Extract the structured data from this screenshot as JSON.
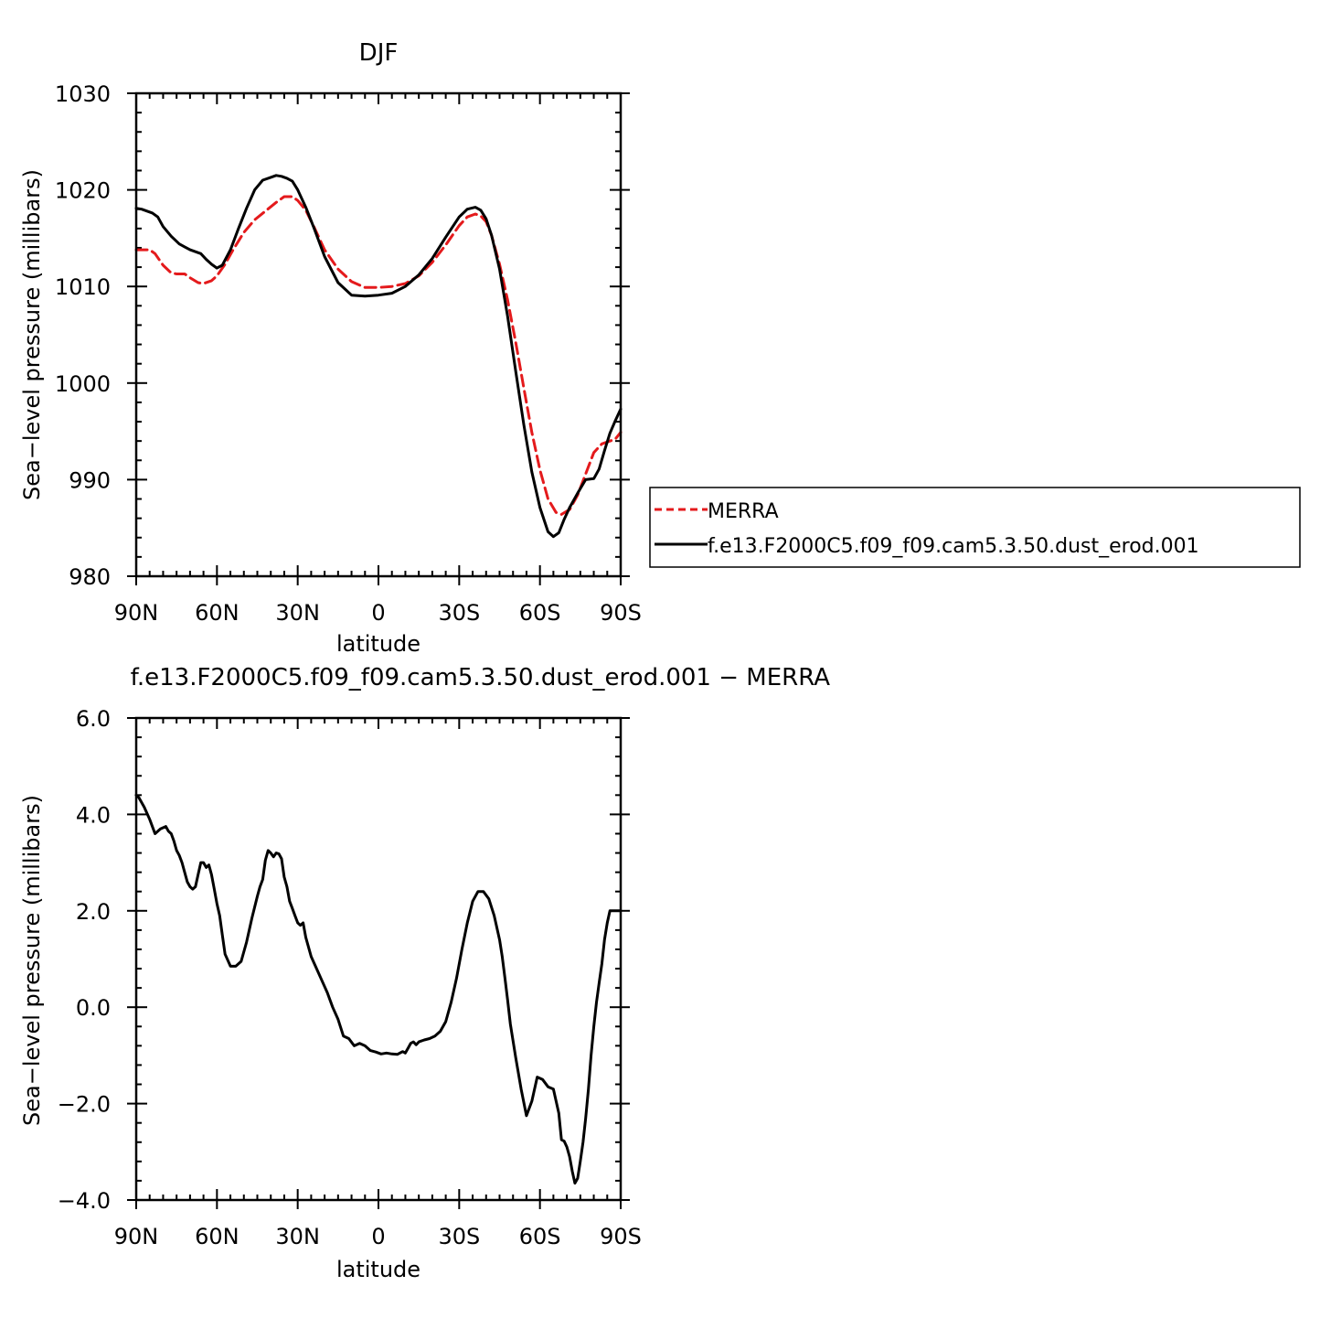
{
  "chart_data": [
    {
      "type": "line",
      "title": "DJF",
      "xlabel": "latitude",
      "ylabel": "Sea−level pressure (millibars)",
      "xlim": [
        90,
        -90
      ],
      "ylim": [
        980,
        1030
      ],
      "x_ticks": [
        {
          "value": 90,
          "label": "90N"
        },
        {
          "value": 60,
          "label": "60N"
        },
        {
          "value": 30,
          "label": "30N"
        },
        {
          "value": 0,
          "label": "0"
        },
        {
          "value": -30,
          "label": "30S"
        },
        {
          "value": -60,
          "label": "60S"
        },
        {
          "value": -90,
          "label": "90S"
        }
      ],
      "y_ticks": [
        {
          "value": 1030,
          "label": "1030"
        },
        {
          "value": 1020,
          "label": "1020"
        },
        {
          "value": 1010,
          "label": "1010"
        },
        {
          "value": 1000,
          "label": "1000"
        },
        {
          "value": 990,
          "label": "990"
        },
        {
          "value": 980,
          "label": "980"
        }
      ],
      "legend_position": "right",
      "series": [
        {
          "name": "MERRA",
          "color": "#e41a1c",
          "dash": "dashed",
          "x": [
            90,
            88,
            85,
            83,
            80,
            77,
            75,
            72,
            70,
            67,
            65,
            62,
            60,
            57,
            54,
            50,
            46,
            42,
            38,
            35,
            32,
            30,
            27,
            24,
            20,
            15,
            10,
            5,
            0,
            -5,
            -10,
            -15,
            -20,
            -25,
            -30,
            -33,
            -36,
            -38,
            -40,
            -42,
            -45,
            -48,
            -51,
            -54,
            -57,
            -60,
            -63,
            -66,
            -68,
            -71,
            -74,
            -77,
            -80,
            -83,
            -86,
            -88,
            -90
          ],
          "values": [
            1013.8,
            1013.8,
            1013.8,
            1013.4,
            1012.2,
            1011.4,
            1011.3,
            1011.3,
            1010.9,
            1010.4,
            1010.3,
            1010.6,
            1011.1,
            1012.3,
            1013.8,
            1015.6,
            1016.9,
            1017.8,
            1018.7,
            1019.3,
            1019.3,
            1018.9,
            1017.9,
            1016.2,
            1013.8,
            1011.8,
            1010.5,
            1009.9,
            1009.9,
            1010.0,
            1010.3,
            1011.1,
            1012.5,
            1014.3,
            1016.3,
            1017.2,
            1017.5,
            1017.3,
            1016.7,
            1015.3,
            1012.3,
            1008.6,
            1004.2,
            999.5,
            994.9,
            991.0,
            988.0,
            986.6,
            986.4,
            986.9,
            988.4,
            990.6,
            992.8,
            993.7,
            994.0,
            994.2,
            994.9
          ]
        },
        {
          "name": "f.e13.F2000C5.f09_f09.cam5.3.50.dust_erod.001",
          "color": "#000000",
          "dash": "solid",
          "x": [
            90,
            88,
            86,
            84,
            82,
            80,
            77,
            74,
            72,
            70,
            68,
            66,
            64,
            62,
            60,
            58,
            55,
            52,
            49,
            46,
            43,
            40,
            38,
            36,
            34,
            32,
            30,
            27,
            24,
            20,
            15,
            10,
            5,
            0,
            -5,
            -10,
            -15,
            -20,
            -25,
            -30,
            -33,
            -36,
            -38,
            -40,
            -42,
            -45,
            -48,
            -51,
            -54,
            -57,
            -60,
            -63,
            -65,
            -67,
            -69,
            -71,
            -74,
            -77,
            -80,
            -82,
            -84,
            -86,
            -88,
            -90
          ],
          "values": [
            1018.1,
            1018.0,
            1017.8,
            1017.6,
            1017.2,
            1016.2,
            1015.2,
            1014.4,
            1014.1,
            1013.8,
            1013.6,
            1013.4,
            1012.8,
            1012.3,
            1011.9,
            1012.2,
            1013.8,
            1016.0,
            1018.1,
            1020.0,
            1021.0,
            1021.3,
            1021.5,
            1021.4,
            1021.2,
            1020.9,
            1020.0,
            1018.2,
            1016.1,
            1013.1,
            1010.4,
            1009.1,
            1009.0,
            1009.1,
            1009.3,
            1010.0,
            1011.2,
            1012.9,
            1015.1,
            1017.2,
            1018.0,
            1018.2,
            1017.9,
            1017.0,
            1015.3,
            1011.8,
            1006.9,
            1001.2,
            995.7,
            990.8,
            987.1,
            984.6,
            984.1,
            984.5,
            985.9,
            987.1,
            988.6,
            990.0,
            990.1,
            991.1,
            993.0,
            994.8,
            996.1,
            997.3
          ]
        }
      ]
    },
    {
      "type": "line",
      "title": "f.e13.F2000C5.f09_f09.cam5.3.50.dust_erod.001 − MERRA",
      "xlabel": "latitude",
      "ylabel": "Sea−level pressure (millibars)",
      "xlim": [
        90,
        -90
      ],
      "ylim": [
        -4,
        6
      ],
      "x_ticks": [
        {
          "value": 90,
          "label": "90N"
        },
        {
          "value": 60,
          "label": "60N"
        },
        {
          "value": 30,
          "label": "30N"
        },
        {
          "value": 0,
          "label": "0"
        },
        {
          "value": -30,
          "label": "30S"
        },
        {
          "value": -60,
          "label": "60S"
        },
        {
          "value": -90,
          "label": "90S"
        }
      ],
      "y_ticks": [
        {
          "value": 6,
          "label": "6.0"
        },
        {
          "value": 4,
          "label": "4.0"
        },
        {
          "value": 2,
          "label": "2.0"
        },
        {
          "value": 0,
          "label": "0.0"
        },
        {
          "value": -2,
          "label": "−2.0"
        },
        {
          "value": -4,
          "label": "−4.0"
        }
      ],
      "series": [
        {
          "color": "#000000",
          "dash": "solid",
          "x": [
            90,
            89,
            87,
            85,
            83,
            81,
            79,
            78,
            77,
            76,
            75,
            74,
            73,
            71,
            70,
            69,
            68,
            67,
            66,
            65,
            64,
            63,
            62,
            61,
            60,
            59,
            58,
            57,
            55,
            53,
            51,
            49,
            47,
            45,
            44,
            43,
            42,
            41,
            40,
            39,
            38,
            37,
            36,
            35,
            34,
            33,
            32,
            31,
            30,
            29,
            28,
            27,
            25,
            23,
            21,
            19,
            17,
            15,
            13,
            11,
            9,
            7,
            5,
            3,
            1,
            -1,
            -3,
            -5,
            -7,
            -9,
            -10,
            -11,
            -12,
            -13,
            -14,
            -15,
            -17,
            -19,
            -21,
            -23,
            -25,
            -27,
            -29,
            -31,
            -33,
            -35,
            -37,
            -39,
            -41,
            -43,
            -45,
            -46,
            -47,
            -48,
            -49,
            -51,
            -53,
            -55,
            -57,
            -59,
            -61,
            -63,
            -65,
            -67,
            -68,
            -69,
            -70,
            -71,
            -72,
            -73,
            -74,
            -75,
            -76,
            -77,
            -78,
            -79,
            -80,
            -81,
            -82,
            -83,
            -84,
            -85,
            -86,
            -87,
            -88,
            -89,
            -90
          ],
          "values": [
            4.4,
            4.35,
            4.15,
            3.9,
            3.6,
            3.7,
            3.75,
            3.65,
            3.6,
            3.45,
            3.25,
            3.15,
            3.0,
            2.6,
            2.5,
            2.45,
            2.5,
            2.75,
            3.0,
            3.0,
            2.9,
            2.95,
            2.75,
            2.45,
            2.15,
            1.9,
            1.5,
            1.1,
            0.85,
            0.85,
            0.95,
            1.35,
            1.85,
            2.3,
            2.5,
            2.65,
            3.05,
            3.25,
            3.2,
            3.12,
            3.2,
            3.18,
            3.08,
            2.7,
            2.5,
            2.2,
            2.05,
            1.9,
            1.75,
            1.7,
            1.75,
            1.45,
            1.05,
            0.8,
            0.55,
            0.3,
            0.0,
            -0.25,
            -0.6,
            -0.65,
            -0.8,
            -0.75,
            -0.8,
            -0.9,
            -0.93,
            -0.97,
            -0.95,
            -0.97,
            -0.98,
            -0.92,
            -0.95,
            -0.85,
            -0.75,
            -0.72,
            -0.78,
            -0.72,
            -0.68,
            -0.65,
            -0.6,
            -0.5,
            -0.3,
            0.1,
            0.6,
            1.2,
            1.75,
            2.2,
            2.4,
            2.4,
            2.25,
            1.9,
            1.4,
            1.05,
            0.6,
            0.15,
            -0.35,
            -1.05,
            -1.7,
            -2.25,
            -1.95,
            -1.45,
            -1.5,
            -1.65,
            -1.7,
            -2.2,
            -2.75,
            -2.78,
            -2.9,
            -3.1,
            -3.4,
            -3.65,
            -3.55,
            -3.2,
            -2.8,
            -2.3,
            -1.7,
            -1.0,
            -0.4,
            0.1,
            0.5,
            0.9,
            1.4,
            1.75,
            2.0,
            2.0,
            2.0,
            2.0,
            2.0
          ]
        }
      ]
    }
  ]
}
